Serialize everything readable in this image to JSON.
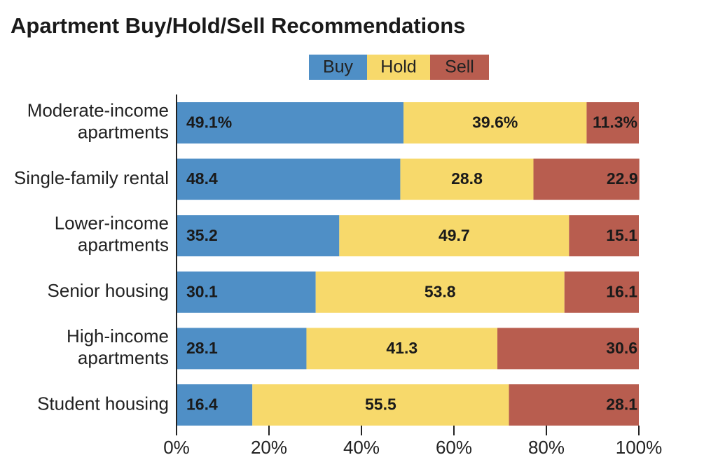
{
  "chart_data": {
    "type": "stacked-barh",
    "title": "Apartment Buy/Hold/Sell Recommendations",
    "categories": [
      "Moderate-income apartments",
      "Single-family rental",
      "Lower-income apartments",
      "Senior housing",
      "High-income apartments",
      "Student housing"
    ],
    "series": [
      {
        "name": "Buy",
        "color": "#4f8fc6",
        "values": [
          49.1,
          48.4,
          35.2,
          30.1,
          28.1,
          16.4
        ],
        "value_labels": [
          "49.1%",
          "48.4",
          "35.2",
          "30.1",
          "28.1",
          "16.4"
        ]
      },
      {
        "name": "Hold",
        "color": "#f7d96b",
        "values": [
          39.6,
          28.8,
          49.7,
          53.8,
          41.3,
          55.5
        ],
        "value_labels": [
          "39.6%",
          "28.8",
          "49.7",
          "53.8",
          "41.3",
          "55.5"
        ]
      },
      {
        "name": "Sell",
        "color": "#b85d4f",
        "values": [
          11.3,
          22.9,
          15.1,
          16.1,
          30.6,
          28.1
        ],
        "value_labels": [
          "11.3%",
          "22.9",
          "15.1",
          "16.1",
          "30.6",
          "28.1"
        ]
      }
    ],
    "xlim": [
      0,
      100
    ],
    "xticks": [
      {
        "value": 0,
        "label": "0%"
      },
      {
        "value": 20,
        "label": "20%"
      },
      {
        "value": 40,
        "label": "40%"
      },
      {
        "value": 60,
        "label": "60%"
      },
      {
        "value": 80,
        "label": "80%"
      },
      {
        "value": 100,
        "label": "100%"
      }
    ],
    "legend": "top"
  }
}
